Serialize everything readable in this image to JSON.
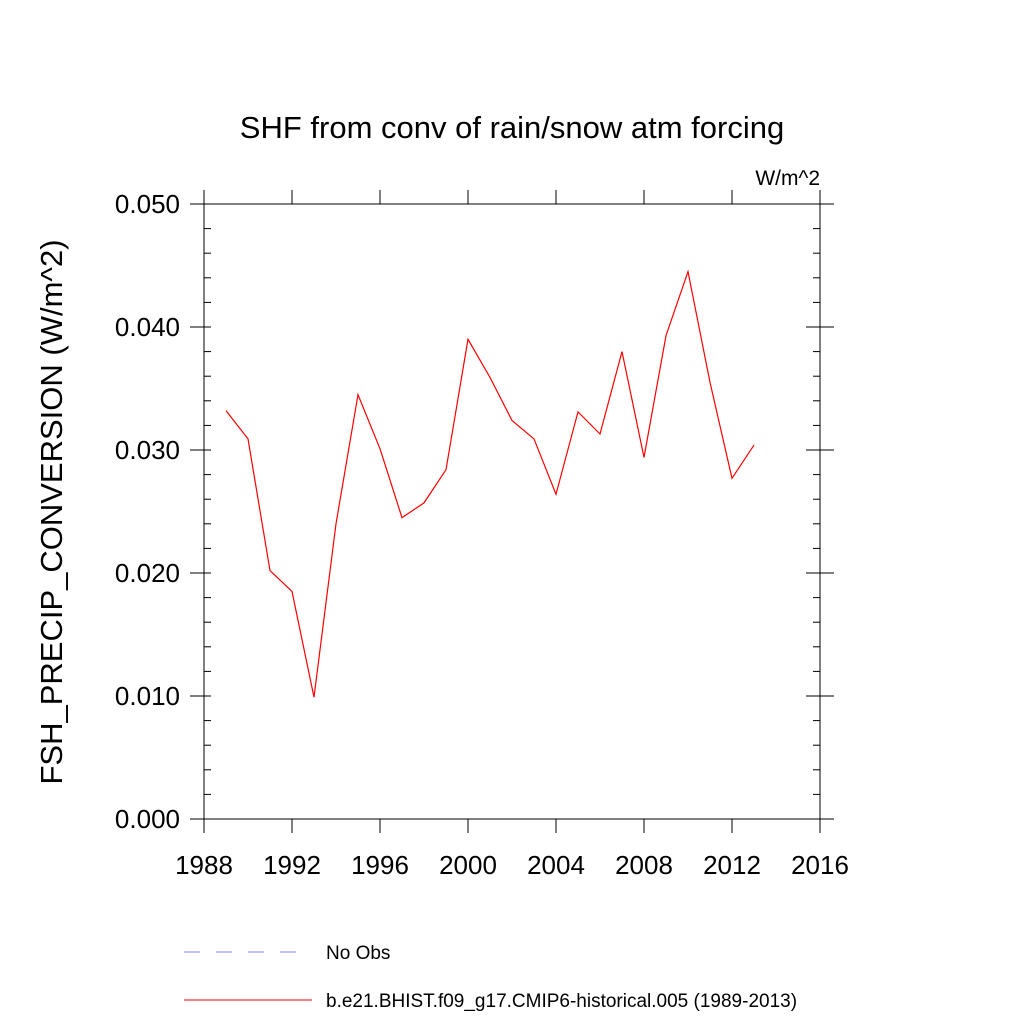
{
  "chart_data": {
    "type": "line",
    "title": "SHF from conv of rain/snow atm forcing",
    "units_label": "W/m^2",
    "xlabel": "",
    "ylabel": "FSH_PRECIP_CONVERSION  (W/m^2)",
    "xlim": [
      1988,
      2016
    ],
    "ylim": [
      0.0,
      0.05
    ],
    "x_ticks": [
      1988,
      1992,
      1996,
      2000,
      2004,
      2008,
      2012,
      2016
    ],
    "x_tick_labels": [
      "1988",
      "1992",
      "1996",
      "2000",
      "2004",
      "2008",
      "2012",
      "2016"
    ],
    "y_ticks": [
      0.0,
      0.01,
      0.02,
      0.03,
      0.04,
      0.05
    ],
    "y_tick_labels": [
      "0.000",
      "0.010",
      "0.020",
      "0.030",
      "0.040",
      "0.050"
    ],
    "grid": false,
    "legend_position": "bottom",
    "series": [
      {
        "name": "b.e21.BHIST.f09_g17.CMIP6-historical.005 (1989-2013)",
        "color": "#ff0000",
        "style": "solid",
        "x": [
          1989,
          1990,
          1991,
          1992,
          1993,
          1994,
          1995,
          1996,
          1997,
          1998,
          1999,
          2000,
          2001,
          2002,
          2003,
          2004,
          2005,
          2006,
          2007,
          2008,
          2009,
          2010,
          2011,
          2012,
          2013
        ],
        "values": [
          0.0332,
          0.0309,
          0.0202,
          0.0185,
          0.0099,
          0.024,
          0.0345,
          0.0301,
          0.0245,
          0.0257,
          0.0284,
          0.039,
          0.0359,
          0.0324,
          0.0309,
          0.0264,
          0.0331,
          0.0313,
          0.038,
          0.0294,
          0.0393,
          0.0445,
          0.0355,
          0.0277,
          0.0304
        ]
      }
    ],
    "legend": [
      {
        "label": "No Obs",
        "color": "#8080ff",
        "style": "dashed"
      },
      {
        "label": "b.e21.BHIST.f09_g17.CMIP6-historical.005 (1989-2013)",
        "color": "#ff0000",
        "style": "solid"
      }
    ]
  }
}
